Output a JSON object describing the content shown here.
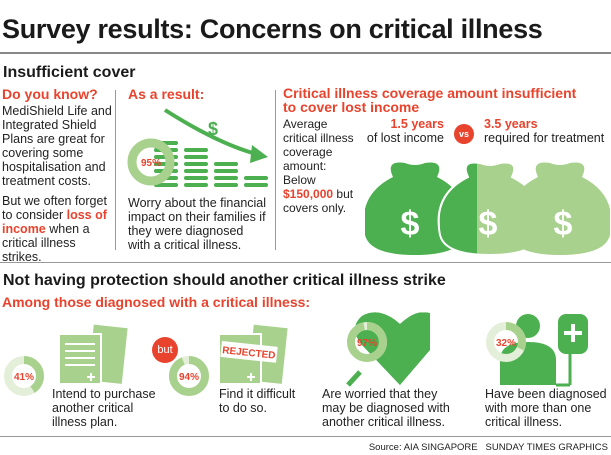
{
  "title": "Survey results: Concerns on critical illness",
  "section1": {
    "heading": "Insufficient cover",
    "col1": {
      "heading": "Do you know?",
      "p1": "MediShield Life and Integrated Shield Plans are great for covering some hospitalisation and treatment costs.",
      "p2_before": "But we often forget to consider ",
      "p2_highlight": "loss of income",
      "p2_after": " when a critical illness strikes."
    },
    "col2": {
      "heading": "As a result:",
      "percent": 95,
      "percent_label": "95%",
      "dollar": "$",
      "text": "Worry about the financial impact on their families if they were diagnosed with a critical illness."
    },
    "col3": {
      "heading": "Critical illness coverage amount insufficient to cover lost income",
      "text_before": "Average critical illness coverage amount: Below ",
      "text_highlight": "$150,000",
      "text_after": " but covers only.",
      "left_value": "1.5 years",
      "left_label": "of lost income",
      "vs": "vs",
      "right_value": "3.5 years",
      "right_label": "required for treatment",
      "bag_symbol": "$"
    }
  },
  "section2": {
    "heading": "Not having protection should another critical illness strike",
    "subheading": "Among those diagnosed with a critical illness:",
    "but": "but",
    "stamp": "REJECTED",
    "stats": [
      {
        "percent": 41,
        "label": "41%",
        "text": "Intend to purchase another critical illness plan."
      },
      {
        "percent": 94,
        "label": "94%",
        "text": "Find it difficult to do so."
      },
      {
        "percent": 97,
        "label": "97%",
        "text": "Are worried that they may be diagnosed with another critical illness."
      },
      {
        "percent": 32,
        "label": "32%",
        "text": "Have been diagnosed with more than one critical illness."
      }
    ]
  },
  "source": "Source: AIA SINGAPORE   SUNDAY TIMES GRAPHICS",
  "colors": {
    "accent_red": "#e8432d",
    "green_dark": "#4caf50",
    "green_light": "#a9d18e"
  }
}
